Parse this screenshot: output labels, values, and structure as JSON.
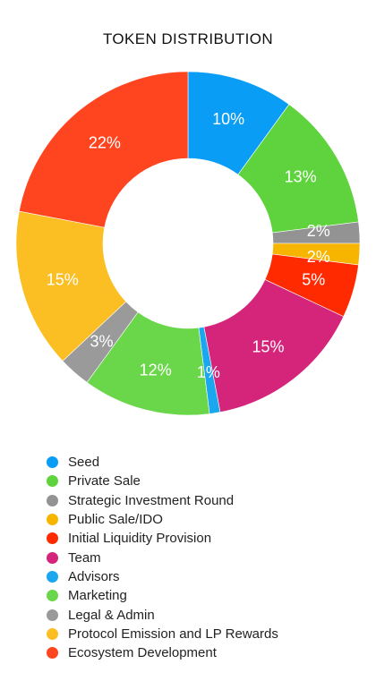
{
  "chart_data": {
    "type": "pie",
    "title": "TOKEN DISTRIBUTION",
    "categories": [
      "Seed",
      "Private Sale",
      "Strategic Investment Round",
      "Public Sale/IDO",
      "Initial Liquidity Provision",
      "Team",
      "Advisors",
      "Marketing",
      "Legal & Admin",
      "Protocol Emission and LP Rewards",
      "Ecosystem Development"
    ],
    "values": [
      10,
      13,
      2,
      2,
      5,
      15,
      1,
      12,
      3,
      15,
      22
    ],
    "labels": [
      "10%",
      "13%",
      "2%",
      "2%",
      "5%",
      "15%",
      "1%",
      "12%",
      "3%",
      "15%",
      "22%"
    ],
    "colors": [
      "#0a9df5",
      "#5fd33d",
      "#939393",
      "#f7b500",
      "#ff2a00",
      "#d4257a",
      "#1aa7f0",
      "#6ad64a",
      "#9a9a9a",
      "#fbbf24",
      "#ff4520"
    ],
    "legend_position": "bottom",
    "donut": true
  }
}
